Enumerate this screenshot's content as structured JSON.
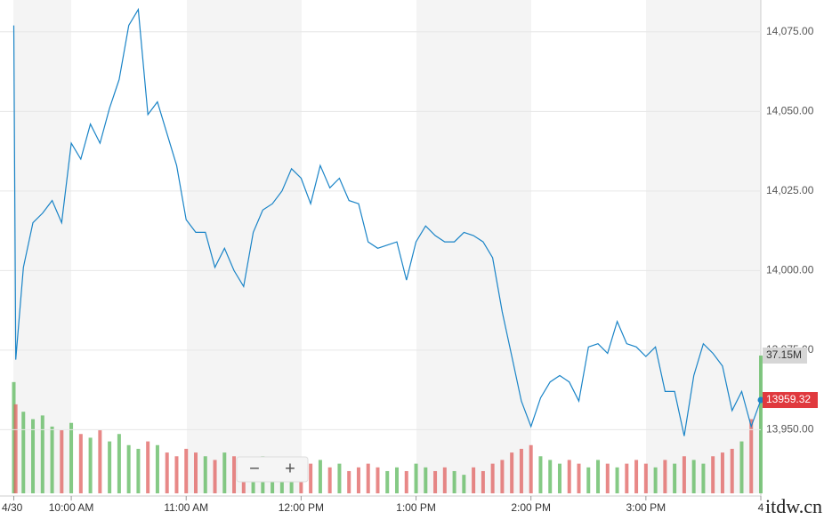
{
  "chart_data": {
    "type": "line",
    "x": [
      0,
      1,
      5,
      10,
      15,
      20,
      25,
      30,
      35,
      40,
      45,
      50,
      55,
      60,
      65,
      70,
      75,
      80,
      85,
      90,
      95,
      100,
      105,
      110,
      115,
      120,
      125,
      130,
      135,
      140,
      145,
      150,
      155,
      160,
      165,
      170,
      175,
      180,
      185,
      190,
      195,
      200,
      205,
      210,
      215,
      220,
      225,
      230,
      235,
      240,
      245,
      250,
      255,
      260,
      265,
      270,
      275,
      280,
      285,
      290,
      295,
      300,
      305,
      310,
      315,
      320,
      325,
      330,
      335,
      340,
      345,
      350,
      355,
      360,
      365,
      370,
      375,
      380,
      385,
      390
    ],
    "xlim": [
      0,
      390
    ],
    "xticks": [
      {
        "value": 0,
        "label": "4/30"
      },
      {
        "value": 30,
        "label": "10:00 AM"
      },
      {
        "value": 90,
        "label": "11:00 AM"
      },
      {
        "value": 150,
        "label": "12:00 PM"
      },
      {
        "value": 210,
        "label": "1:00 PM"
      },
      {
        "value": 270,
        "label": "2:00 PM"
      },
      {
        "value": 330,
        "label": "3:00 PM"
      },
      {
        "value": 390,
        "label": "4"
      }
    ],
    "series": [
      {
        "color": "#1a84c7",
        "values": [
          14077,
          13972,
          14001,
          14015,
          14018,
          14022,
          14015,
          14040,
          14035,
          14046,
          14040,
          14051,
          14060,
          14077,
          14082,
          14049,
          14053,
          14043,
          14033,
          14016,
          14012,
          14012,
          14001,
          14007,
          14000,
          13995,
          14012,
          14019,
          14021,
          14025,
          14032,
          14029,
          14021,
          14033,
          14026,
          14029,
          14022,
          14021,
          14009,
          14007,
          14008,
          14009,
          13997,
          14009,
          14014,
          14011,
          14009,
          14009,
          14012,
          14011,
          14009,
          14004,
          13987,
          13973,
          13959,
          13951,
          13960,
          13965,
          13967,
          13965,
          13959,
          13976,
          13977,
          13974,
          13984,
          13977,
          13976,
          13973,
          13976,
          13962,
          13962,
          13948,
          13967,
          13977,
          13974,
          13970,
          13956,
          13962,
          13951,
          13959.32
        ]
      }
    ],
    "ylim": [
      13930,
      14085
    ],
    "yticks": [
      {
        "value": 13950,
        "label": "13,950.00"
      },
      {
        "value": 13975,
        "label": "13,975.00"
      },
      {
        "value": 14000,
        "label": "14,000.00"
      },
      {
        "value": 14025,
        "label": "14,025.00"
      },
      {
        "value": 14050,
        "label": "14,050.00"
      },
      {
        "value": 14075,
        "label": "14,075.00"
      }
    ],
    "grid": true,
    "last_price": 13959.32,
    "volume": {
      "values": [
        30,
        24,
        22,
        20,
        21,
        18,
        17,
        19,
        16,
        15,
        17,
        14,
        16,
        13,
        12,
        14,
        13,
        11,
        10,
        12,
        11,
        10,
        9,
        11,
        10,
        9,
        8,
        10,
        9,
        8,
        9,
        7,
        8,
        9,
        7,
        8,
        6,
        7,
        8,
        7,
        6,
        7,
        6,
        8,
        7,
        6,
        7,
        6,
        5,
        7,
        6,
        8,
        9,
        11,
        12,
        13,
        10,
        9,
        8,
        9,
        8,
        7,
        9,
        8,
        7,
        8,
        9,
        8,
        7,
        9,
        8,
        10,
        9,
        8,
        10,
        11,
        12,
        14,
        20,
        37.15
      ],
      "max": {
        "value": 37.15,
        "label": "37.15M"
      },
      "up_color": "#5cb85c",
      "down_color": "#e0605f"
    }
  },
  "controls": {
    "zoom_out": "−",
    "zoom_in": "+"
  },
  "watermark": "itdw.cn"
}
